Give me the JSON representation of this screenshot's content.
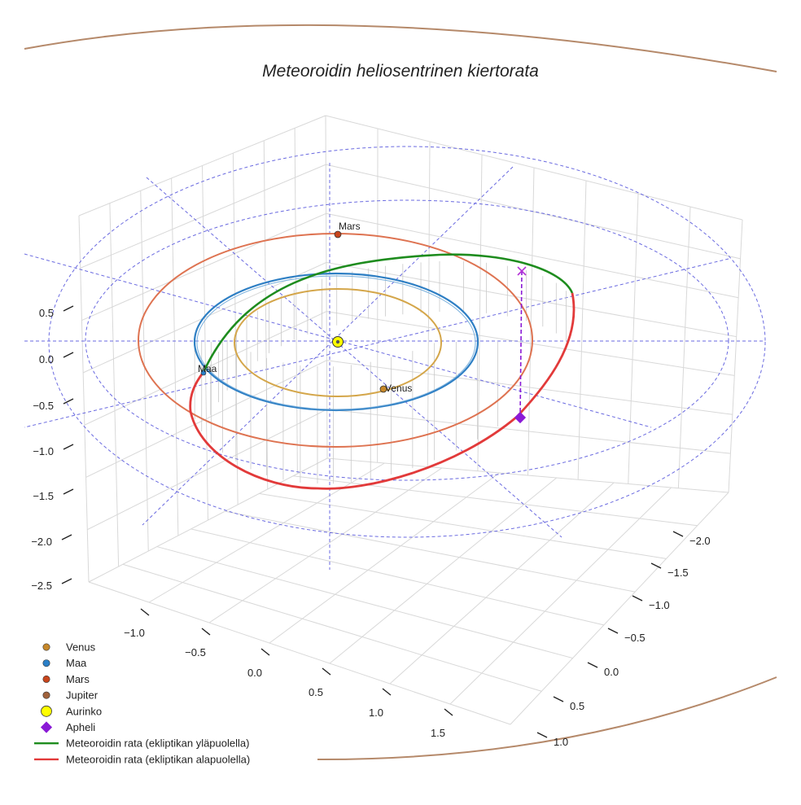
{
  "chart_data": {
    "type": "scatter3d",
    "title": "Meteoroidin heliosentrinen kiertorata",
    "z_ticks": [
      "0.5",
      "0.0",
      "−0.5",
      "−1.0",
      "−1.5",
      "−2.0",
      "−2.5"
    ],
    "x_ticks": [
      "−1.0",
      "−0.5",
      "0.0",
      "0.5",
      "1.0",
      "1.5"
    ],
    "y_ticks": [
      "−2.0",
      "−1.5",
      "−1.0",
      "−0.5",
      "0.0",
      "0.5",
      "1.0"
    ],
    "planets": [
      {
        "name": "Venus",
        "orbit_radius_au": 0.72,
        "color": "#c7882a"
      },
      {
        "name": "Maa",
        "orbit_radius_au": 1.0,
        "color": "#2a7fc7"
      },
      {
        "name": "Mars",
        "orbit_radius_au": 1.52,
        "color": "#c8451c"
      },
      {
        "name": "Jupiter",
        "orbit_radius_au": 5.2,
        "color": "#a0623c"
      }
    ],
    "planet_labels": [
      "Mars",
      "Maa",
      "Venus"
    ],
    "sun": {
      "name": "Aurinko",
      "color": "#ffff00"
    },
    "aphelion": {
      "name": "Apheli",
      "color": "#8a1ad6"
    },
    "meteoroid_orbit": {
      "above_label": "Meteoroidin rata (ekliptikan yläpuolella)",
      "above_color": "#1e8c1e",
      "below_label": "Meteoroidin rata (ekliptikan alapuolella)",
      "below_color": "#e23a3a"
    },
    "legend": [
      {
        "label": "Venus",
        "marker": "dot",
        "color": "#c7882a"
      },
      {
        "label": "Maa",
        "marker": "dot",
        "color": "#2a7fc7"
      },
      {
        "label": "Mars",
        "marker": "dot",
        "color": "#c8451c"
      },
      {
        "label": "Jupiter",
        "marker": "dot",
        "color": "#a0623c"
      },
      {
        "label": "Aurinko",
        "marker": "sun",
        "color": "#ffff00"
      },
      {
        "label": "Apheli",
        "marker": "diamond",
        "color": "#8a1ad6"
      },
      {
        "label": "Meteoroidin rata (ekliptikan yläpuolella)",
        "marker": "line",
        "color": "#1e8c1e"
      },
      {
        "label": "Meteoroidin rata (ekliptikan alapuolella)",
        "marker": "line",
        "color": "#e23a3a"
      }
    ],
    "legend_position": "lower-left"
  }
}
